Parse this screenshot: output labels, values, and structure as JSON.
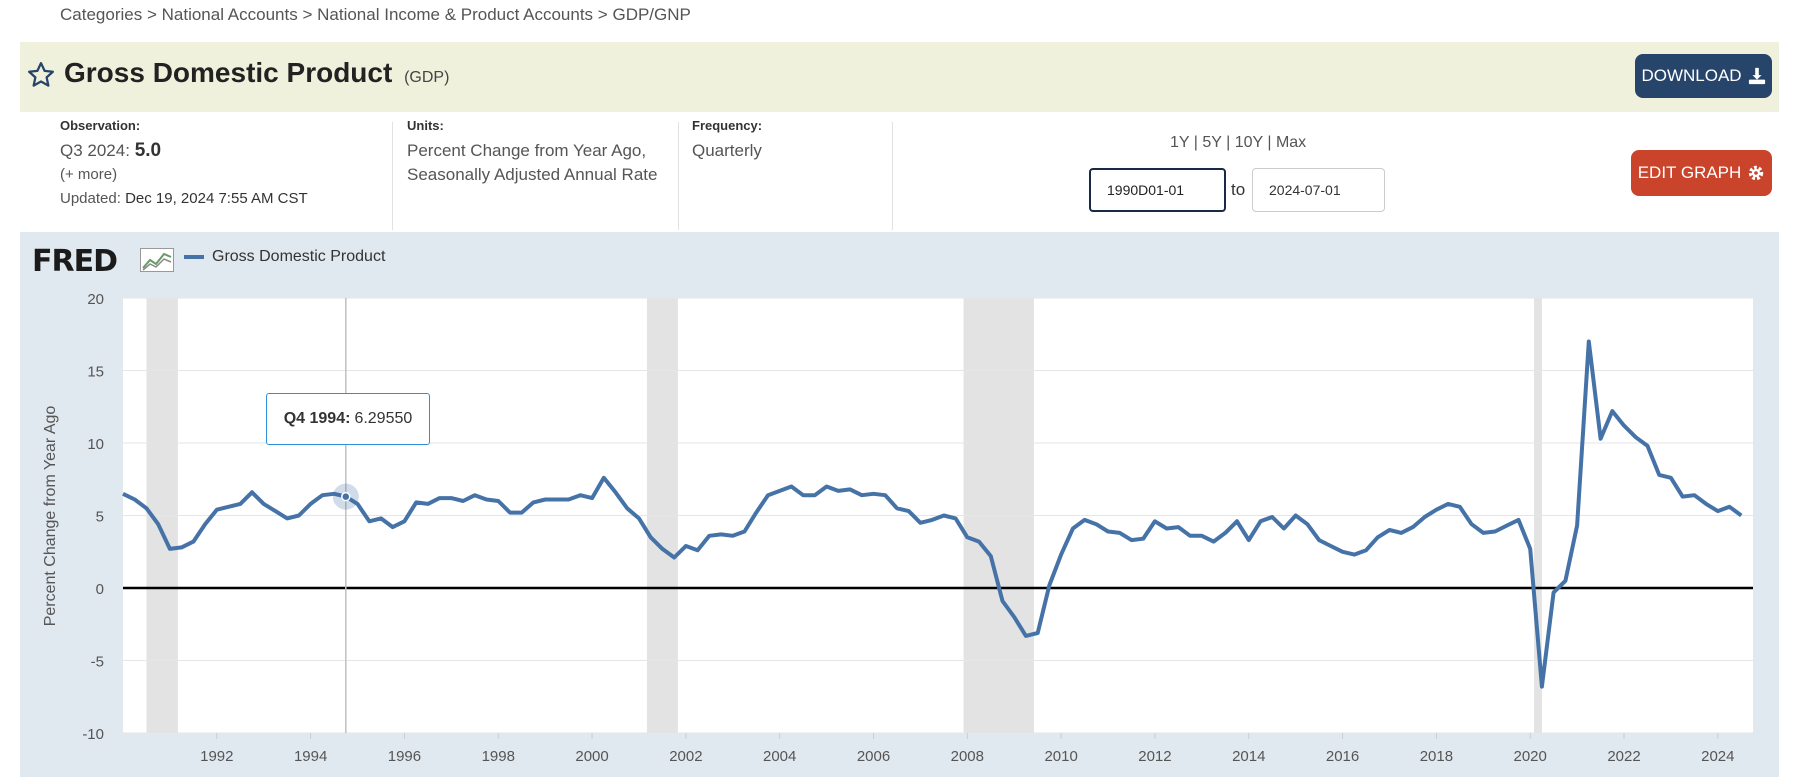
{
  "breadcrumb": [
    "Categories",
    "National Accounts",
    "National Income & Product Accounts",
    "GDP/GNP"
  ],
  "breadcrumb_sep": ">",
  "header": {
    "title": "Gross Domestic Product",
    "code": "(GDP)",
    "download_label": "DOWNLOAD"
  },
  "observation": {
    "label": "Observation:",
    "period": "Q3 2024:",
    "value": "5.0",
    "more": "(+ more)",
    "updated_label": "Updated:",
    "updated": "Dec 19, 2024 7:55 AM CST"
  },
  "units": {
    "label": "Units:",
    "line1": "Percent Change from Year Ago,",
    "line2": "Seasonally Adjusted Annual Rate"
  },
  "frequency": {
    "label": "Frequency:",
    "value": "Quarterly"
  },
  "range_buttons": [
    "1Y",
    "5Y",
    "10Y",
    "Max"
  ],
  "range_sep": "|",
  "date_range": {
    "start": "1990D01-01",
    "to_label": "to",
    "end": "2024-07-01"
  },
  "edit_label": "EDIT GRAPH",
  "logo": "FRED",
  "tooltip": {
    "label": "Q4 1994:",
    "value": "6.29550"
  },
  "colors": {
    "line": "#4572a7",
    "recession": "#e3e3e3",
    "plot_bg": "#ffffff",
    "chart_bg": "#e1e9f0",
    "download": "#27456b",
    "edit": "#c9442b"
  },
  "chart_data": {
    "type": "line",
    "title": "",
    "ylabel": "Percent Change from Year Ago",
    "xlabel": "",
    "ylim": [
      -10,
      20
    ],
    "xlim": [
      1990.0,
      2024.75
    ],
    "yticks": [
      "20",
      "15",
      "10",
      "5",
      "0",
      "-5",
      "-10"
    ],
    "xticks": [
      "1992",
      "1994",
      "1996",
      "1998",
      "2000",
      "2002",
      "2004",
      "2006",
      "2008",
      "2010",
      "2012",
      "2014",
      "2016",
      "2018",
      "2020",
      "2022",
      "2024"
    ],
    "recessions": [
      [
        1990.5,
        1991.17
      ],
      [
        2001.17,
        2001.83
      ],
      [
        2007.92,
        2009.42
      ],
      [
        2020.08,
        2020.25
      ]
    ],
    "series": [
      {
        "name": "Gross Domestic Product",
        "start": 1990.0,
        "step": 0.25,
        "values": [
          6.5,
          6.1,
          5.5,
          4.4,
          2.7,
          2.8,
          3.2,
          4.4,
          5.4,
          5.6,
          5.8,
          6.6,
          5.8,
          5.3,
          4.8,
          5.0,
          5.8,
          6.4,
          6.5,
          6.3,
          5.8,
          4.6,
          4.8,
          4.2,
          4.6,
          5.9,
          5.8,
          6.2,
          6.2,
          6.0,
          6.4,
          6.1,
          6.0,
          5.2,
          5.2,
          5.9,
          6.1,
          6.1,
          6.1,
          6.4,
          6.2,
          7.6,
          6.6,
          5.5,
          4.8,
          3.5,
          2.7,
          2.1,
          2.9,
          2.6,
          3.6,
          3.7,
          3.6,
          3.9,
          5.2,
          6.4,
          6.7,
          7.0,
          6.4,
          6.4,
          7.0,
          6.7,
          6.8,
          6.4,
          6.5,
          6.4,
          5.5,
          5.3,
          4.5,
          4.7,
          5.0,
          4.8,
          3.5,
          3.2,
          2.2,
          -0.9,
          -2.0,
          -3.3,
          -3.1,
          0.2,
          2.3,
          4.1,
          4.7,
          4.4,
          3.9,
          3.8,
          3.3,
          3.4,
          4.6,
          4.1,
          4.2,
          3.6,
          3.6,
          3.2,
          3.8,
          4.6,
          3.3,
          4.6,
          4.9,
          4.1,
          5.0,
          4.4,
          3.3,
          2.9,
          2.5,
          2.3,
          2.6,
          3.5,
          4.0,
          3.8,
          4.2,
          4.9,
          5.4,
          5.8,
          5.6,
          4.4,
          3.8,
          3.9,
          4.3,
          4.7,
          2.7,
          -6.8,
          -0.3,
          0.5,
          4.3,
          17.0,
          10.3,
          12.2,
          11.2,
          10.4,
          9.8,
          7.8,
          7.6,
          6.3,
          6.4,
          5.8,
          5.3,
          5.6,
          5.0
        ]
      }
    ]
  }
}
